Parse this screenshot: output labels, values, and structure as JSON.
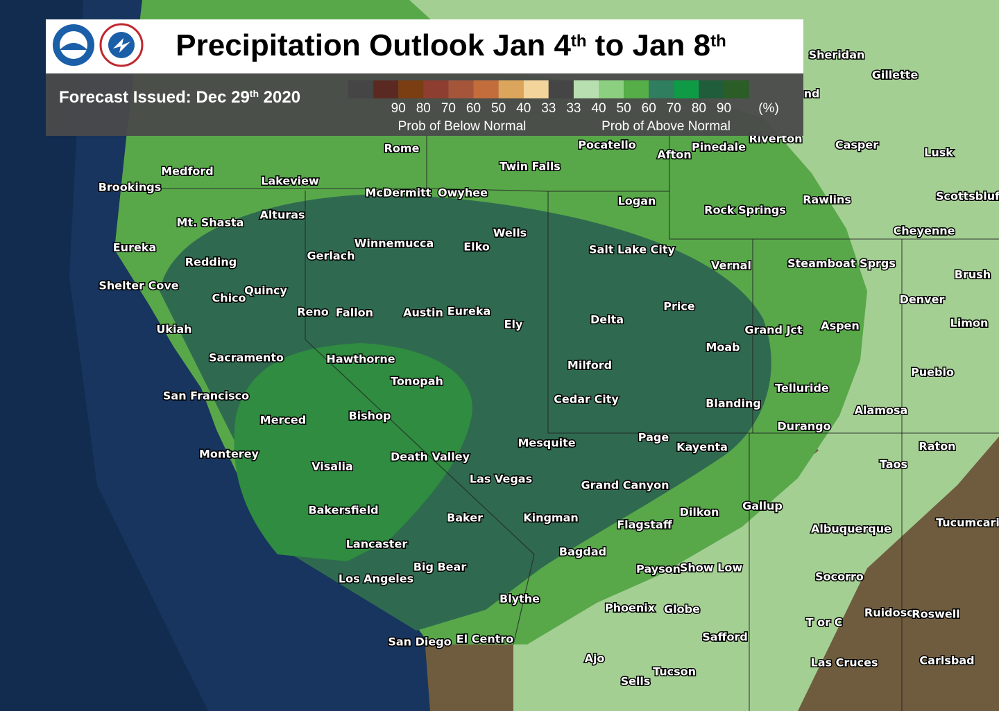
{
  "header": {
    "title": [
      "Precipitation Outlook Jan 4",
      "th",
      " to Jan 8",
      "th"
    ],
    "issued": [
      "Forecast Issued: Dec 29",
      "th",
      " 2020"
    ]
  },
  "legend": {
    "below_ticks": [
      90,
      80,
      70,
      60,
      50,
      40,
      33
    ],
    "above_ticks": [
      33,
      40,
      50,
      60,
      70,
      80,
      90
    ],
    "unit": "(%)",
    "below_label": "Prob of Below Normal",
    "above_label": "Prob of Above Normal"
  },
  "places": [
    "Sheridan",
    "Gillette",
    "nd",
    "Riverton",
    "Casper",
    "Lusk",
    "Scottsbluf",
    "Rawlins",
    "Cheyenne",
    "Rome",
    "Pocatello",
    "Afton",
    "Pinedale",
    "Twin Falls",
    "Medford",
    "Brookings",
    "Lakeview",
    "McDermitt",
    "Owyhee",
    "Logan",
    "Rock Springs",
    "Mt. Shasta",
    "Alturas",
    "Wells",
    "Eureka",
    "Winnemucca",
    "Elko",
    "Salt Lake City",
    "Vernal",
    "Steamboat Sprgs",
    "Gerlach",
    "Redding",
    "Brush",
    "Shelter Cove",
    "Quincy",
    "Chico",
    "Denver",
    "Price",
    "Reno",
    "Fallon",
    "Austin",
    "Eureka",
    "Delta",
    "Limon",
    "Ely",
    "Grand Jct",
    "Aspen",
    "Ukiah",
    "Moab",
    "Sacramento",
    "Hawthorne",
    "Milford",
    "Pueblo",
    "Tonopah",
    "Telluride",
    "San Francisco",
    "Cedar City",
    "Blanding",
    "Alamosa",
    "Bishop",
    "Merced",
    "Durango",
    "Page",
    "Mesquite",
    "Kayenta",
    "Raton",
    "Monterey",
    "Death Valley",
    "Taos",
    "Visalia",
    "Las Vegas",
    "Grand Canyon",
    "Gallup",
    "Bakersfield",
    "Dilkon",
    "Baker",
    "Kingman",
    "Flagstaff",
    "Tucumcari",
    "Albuquerque",
    "Lancaster",
    "Bagdad",
    "Big Bear",
    "Payson",
    "Show Low",
    "Los Angeles",
    "Socorro",
    "Blythe",
    "Phoenix",
    "Globe",
    "Ruidoso",
    "Roswell",
    "T or C",
    "Safford",
    "San Diego",
    "El Centro",
    "Ajo",
    "Carlsbad",
    "Las Cruces",
    "Tucson",
    "Sells"
  ]
}
